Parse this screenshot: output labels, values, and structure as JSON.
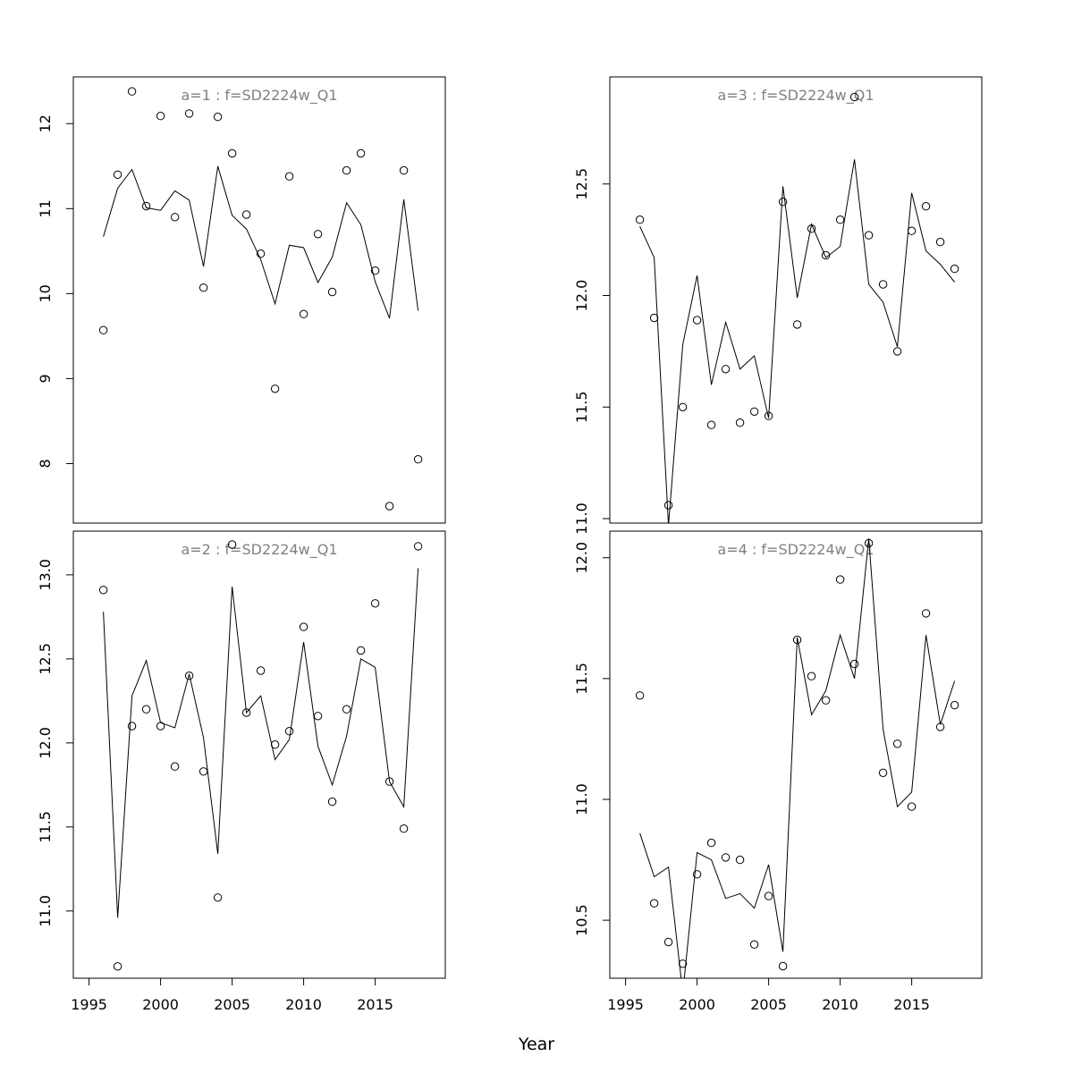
{
  "chart_data": {
    "type": "line",
    "xlabel": "Year",
    "x_ticks": [
      1995,
      2000,
      2005,
      2010,
      2015
    ],
    "xlim": [
      1993.9,
      2019.9
    ],
    "legend": "none",
    "grid": false,
    "panels": [
      {
        "title": "a=1  :  f=SD2224w_Q1",
        "ylim": [
          7.3,
          12.55
        ],
        "y_ticks": [
          8,
          9,
          10,
          11,
          12
        ],
        "series": [
          {
            "type": "scatter",
            "marker": "open-circle",
            "x": [
              1996,
              1997,
              1998,
              1999,
              2000,
              2001,
              2002,
              2003,
              2004,
              2005,
              2006,
              2007,
              2008,
              2009,
              2010,
              2011,
              2012,
              2013,
              2014,
              2015,
              2016,
              2017,
              2018
            ],
            "y": [
              9.57,
              11.4,
              12.38,
              11.03,
              12.09,
              10.9,
              12.12,
              10.07,
              12.08,
              11.65,
              10.93,
              10.47,
              8.88,
              11.38,
              9.76,
              10.7,
              10.02,
              11.45,
              11.65,
              10.27,
              7.5,
              11.45,
              8.05
            ]
          },
          {
            "type": "line",
            "x": [
              1996,
              1997,
              1998,
              1999,
              2000,
              2001,
              2002,
              2003,
              2004,
              2005,
              2006,
              2007,
              2008,
              2009,
              2010,
              2011,
              2012,
              2013,
              2014,
              2015,
              2016,
              2017,
              2018
            ],
            "y": [
              10.67,
              11.24,
              11.46,
              11.01,
              10.98,
              11.21,
              11.1,
              10.32,
              11.5,
              10.92,
              10.76,
              10.4,
              9.88,
              10.57,
              10.54,
              10.13,
              10.43,
              11.07,
              10.81,
              10.14,
              9.71,
              11.11,
              9.8
            ]
          }
        ]
      },
      {
        "title": "a=3  :  f=SD2224w_Q1",
        "ylim": [
          10.98,
          12.98
        ],
        "y_ticks": [
          11.0,
          11.5,
          12.0,
          12.5
        ],
        "series": [
          {
            "type": "scatter",
            "marker": "open-circle",
            "x": [
              1996,
              1997,
              1998,
              1999,
              2000,
              2001,
              2002,
              2003,
              2004,
              2005,
              2006,
              2007,
              2008,
              2009,
              2010,
              2011,
              2012,
              2013,
              2014,
              2015,
              2016,
              2017,
              2018
            ],
            "y": [
              12.34,
              11.9,
              11.06,
              11.5,
              11.89,
              11.42,
              11.67,
              11.43,
              11.48,
              11.46,
              12.42,
              11.87,
              12.3,
              12.18,
              12.34,
              12.89,
              12.27,
              12.05,
              11.75,
              12.29,
              12.4,
              12.24,
              12.12
            ]
          },
          {
            "type": "line",
            "x": [
              1996,
              1997,
              1998,
              1999,
              2000,
              2001,
              2002,
              2003,
              2004,
              2005,
              2006,
              2007,
              2008,
              2009,
              2010,
              2011,
              2012,
              2013,
              2014,
              2015,
              2016,
              2017,
              2018
            ],
            "y": [
              12.31,
              12.17,
              10.97,
              11.78,
              12.09,
              11.6,
              11.88,
              11.67,
              11.73,
              11.45,
              12.49,
              11.99,
              12.32,
              12.17,
              12.22,
              12.61,
              12.05,
              11.97,
              11.77,
              12.46,
              12.2,
              12.14,
              12.06
            ]
          }
        ]
      },
      {
        "title": "a=2  :  f=SD2224w_Q1",
        "ylim": [
          10.6,
          13.26
        ],
        "y_ticks": [
          11.0,
          11.5,
          12.0,
          12.5,
          13.0
        ],
        "series": [
          {
            "type": "scatter",
            "marker": "open-circle",
            "x": [
              1996,
              1997,
              1998,
              1999,
              2000,
              2001,
              2002,
              2003,
              2004,
              2005,
              2006,
              2007,
              2008,
              2009,
              2010,
              2011,
              2012,
              2013,
              2014,
              2015,
              2016,
              2017,
              2018
            ],
            "y": [
              12.91,
              10.67,
              12.1,
              12.2,
              12.1,
              11.86,
              12.4,
              11.83,
              11.08,
              13.18,
              12.18,
              12.43,
              11.99,
              12.07,
              12.69,
              12.16,
              11.65,
              12.2,
              12.55,
              12.83,
              11.77,
              11.49,
              13.17
            ]
          },
          {
            "type": "line",
            "x": [
              1996,
              1997,
              1998,
              1999,
              2000,
              2001,
              2002,
              2003,
              2004,
              2005,
              2006,
              2007,
              2008,
              2009,
              2010,
              2011,
              2012,
              2013,
              2014,
              2015,
              2016,
              2017,
              2018
            ],
            "y": [
              12.78,
              10.96,
              12.28,
              12.49,
              12.12,
              12.09,
              12.41,
              12.03,
              11.34,
              12.93,
              12.18,
              12.28,
              11.9,
              12.02,
              12.6,
              11.98,
              11.75,
              12.04,
              12.5,
              12.45,
              11.77,
              11.62,
              13.04
            ]
          }
        ]
      },
      {
        "title": "a=4  :  f=SD2224w_Q1",
        "ylim": [
          10.26,
          12.11
        ],
        "y_ticks": [
          10.5,
          11.0,
          11.5,
          12.0
        ],
        "series": [
          {
            "type": "scatter",
            "marker": "open-circle",
            "x": [
              1996,
              1997,
              1998,
              1999,
              2000,
              2001,
              2002,
              2003,
              2004,
              2005,
              2006,
              2007,
              2008,
              2009,
              2010,
              2011,
              2012,
              2013,
              2014,
              2015,
              2016,
              2017,
              2018
            ],
            "y": [
              11.43,
              10.57,
              10.41,
              10.32,
              10.69,
              10.82,
              10.76,
              10.75,
              10.4,
              10.6,
              10.31,
              11.66,
              11.51,
              11.41,
              11.91,
              11.56,
              12.06,
              11.11,
              11.23,
              10.97,
              11.77,
              11.3,
              11.39
            ]
          },
          {
            "type": "line",
            "x": [
              1996,
              1997,
              1998,
              1999,
              2000,
              2001,
              2002,
              2003,
              2004,
              2005,
              2006,
              2007,
              2008,
              2009,
              2010,
              2011,
              2012,
              2013,
              2014,
              2015,
              2016,
              2017,
              2018
            ],
            "y": [
              10.86,
              10.68,
              10.72,
              10.2,
              10.78,
              10.75,
              10.59,
              10.61,
              10.55,
              10.73,
              10.37,
              11.67,
              11.35,
              11.45,
              11.68,
              11.5,
              12.08,
              11.29,
              10.97,
              11.03,
              11.68,
              11.31,
              11.49
            ]
          }
        ]
      }
    ]
  }
}
